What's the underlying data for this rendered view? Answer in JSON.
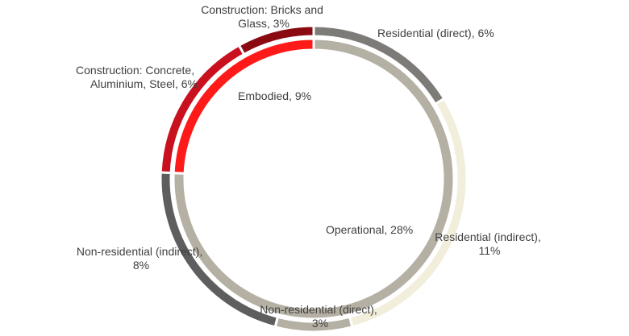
{
  "chart_data": {
    "type": "donut",
    "title": "",
    "inner_ring": {
      "name": "",
      "slices": [
        {
          "label": "Operational, 28%",
          "category": "Operational",
          "value": 28,
          "color": "#b5b0a4"
        },
        {
          "label": "Embodied, 9%",
          "category": "Embodied",
          "value": 9,
          "color": "#ff1a1a"
        }
      ]
    },
    "outer_ring": {
      "name": "",
      "slices": [
        {
          "label": "Residential (direct), 6%",
          "category": "Residential (direct)",
          "value": 6,
          "color": "#7d7b78"
        },
        {
          "label": "Residential (indirect), 11%",
          "category": "Residential (indirect)",
          "value": 11,
          "color": "#f2eedc"
        },
        {
          "label": "Non-residential (direct), 3%",
          "category": "Non-residential (direct)",
          "value": 3,
          "color": "#b5b0a4"
        },
        {
          "label": "Non-residential (indirect), 8%",
          "category": "Non-residential (indirect)",
          "value": 8,
          "color": "#5e5e5e"
        },
        {
          "label": "Construction: Concrete, Aluminium, Steel, 6%",
          "category": "Construction: Concrete, Aluminium, Steel",
          "value": 6,
          "color": "#c8101e"
        },
        {
          "label": "Construction: Bricks and Glass, 3%",
          "category": "Construction: Bricks and Glass",
          "value": 3,
          "color": "#8b0a12"
        }
      ]
    },
    "legend": "none"
  }
}
